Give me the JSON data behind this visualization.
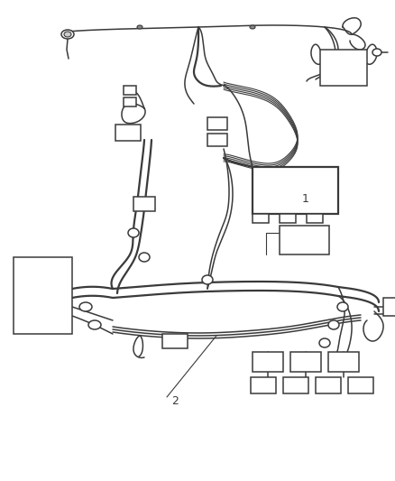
{
  "bg_color": "#ffffff",
  "line_color": "#3a3a3a",
  "lw_thin": 0.8,
  "lw_main": 1.1,
  "lw_thick": 1.6,
  "label1": "1",
  "label2": "2",
  "figsize": [
    4.39,
    5.33
  ],
  "dpi": 100
}
